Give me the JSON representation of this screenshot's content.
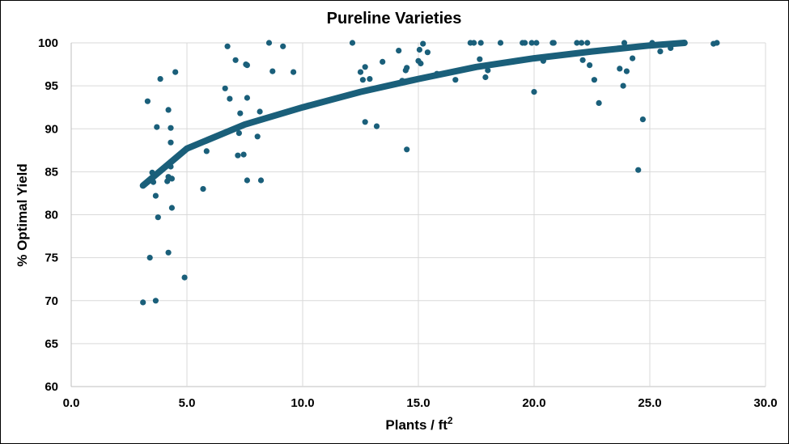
{
  "colors": {
    "marker": "#1a5f7a",
    "trendline": "#1a5f7a",
    "grid": "#d9d9d9",
    "text": "#000000"
  },
  "chart_data": {
    "type": "scatter",
    "title": "Pureline Varieties",
    "xlabel_main": "Plants / ft",
    "xlabel_sup": "2",
    "ylabel": "% Optimal Yield",
    "xlim": [
      0,
      30
    ],
    "ylim": [
      60,
      100
    ],
    "x_ticks": [
      "0.0",
      "5.0",
      "10.0",
      "15.0",
      "20.0",
      "25.0",
      "30.0"
    ],
    "y_ticks": [
      "60",
      "65",
      "70",
      "75",
      "80",
      "85",
      "90",
      "95",
      "100"
    ],
    "grid": "horizontal and vertical",
    "legend": "none",
    "trendline": {
      "type": "logarithmic",
      "x_range": [
        3.1,
        26.5
      ],
      "points": [
        [
          3.1,
          83.4
        ],
        [
          5,
          87.7
        ],
        [
          7.5,
          90.5
        ],
        [
          10,
          92.5
        ],
        [
          12.5,
          94.3
        ],
        [
          15,
          95.8
        ],
        [
          17.5,
          97.2
        ],
        [
          20,
          98.2
        ],
        [
          22.5,
          99.0
        ],
        [
          25,
          99.7
        ],
        [
          26.5,
          100.0
        ]
      ]
    },
    "points": [
      [
        3.1,
        69.8
      ],
      [
        3.2,
        83.6
      ],
      [
        3.3,
        93.2
      ],
      [
        3.4,
        75.0
      ],
      [
        3.5,
        84.9
      ],
      [
        3.55,
        83.8
      ],
      [
        3.65,
        70.0
      ],
      [
        3.65,
        82.2
      ],
      [
        3.7,
        90.2
      ],
      [
        3.75,
        79.7
      ],
      [
        3.85,
        95.8
      ],
      [
        4.15,
        83.9
      ],
      [
        4.2,
        84.4
      ],
      [
        4.2,
        75.6
      ],
      [
        4.2,
        92.2
      ],
      [
        4.3,
        90.1
      ],
      [
        4.3,
        88.4
      ],
      [
        4.3,
        85.6
      ],
      [
        4.35,
        84.2
      ],
      [
        4.35,
        80.8
      ],
      [
        4.5,
        96.6
      ],
      [
        4.9,
        72.7
      ],
      [
        5.7,
        83.0
      ],
      [
        5.85,
        87.4
      ],
      [
        6.65,
        94.7
      ],
      [
        6.75,
        99.6
      ],
      [
        6.85,
        93.5
      ],
      [
        7.1,
        98.0
      ],
      [
        7.2,
        86.9
      ],
      [
        7.25,
        89.5
      ],
      [
        7.3,
        91.8
      ],
      [
        7.45,
        87.0
      ],
      [
        7.55,
        97.5
      ],
      [
        7.6,
        97.4
      ],
      [
        7.6,
        93.6
      ],
      [
        7.6,
        84.0
      ],
      [
        7.9,
        90.8
      ],
      [
        8.05,
        89.1
      ],
      [
        8.15,
        92.0
      ],
      [
        8.2,
        84.0
      ],
      [
        8.55,
        100.0
      ],
      [
        8.7,
        96.7
      ],
      [
        9.15,
        99.6
      ],
      [
        9.6,
        96.6
      ],
      [
        12.15,
        100.0
      ],
      [
        12.5,
        96.6
      ],
      [
        12.6,
        95.7
      ],
      [
        12.7,
        97.2
      ],
      [
        12.7,
        90.8
      ],
      [
        12.9,
        95.8
      ],
      [
        13.2,
        90.3
      ],
      [
        13.45,
        97.8
      ],
      [
        14.15,
        99.1
      ],
      [
        14.3,
        95.6
      ],
      [
        14.45,
        96.8
      ],
      [
        14.5,
        97.1
      ],
      [
        14.5,
        87.6
      ],
      [
        15.0,
        97.9
      ],
      [
        15.05,
        99.2
      ],
      [
        15.1,
        97.6
      ],
      [
        15.2,
        99.9
      ],
      [
        15.4,
        98.9
      ],
      [
        15.8,
        96.4
      ],
      [
        16.6,
        95.7
      ],
      [
        17.25,
        100.0
      ],
      [
        17.4,
        100.0
      ],
      [
        17.65,
        98.1
      ],
      [
        17.7,
        100.0
      ],
      [
        17.9,
        96.0
      ],
      [
        18.0,
        96.8
      ],
      [
        18.55,
        100.0
      ],
      [
        19.5,
        100.0
      ],
      [
        19.6,
        100.0
      ],
      [
        19.9,
        100.0
      ],
      [
        20.0,
        94.3
      ],
      [
        20.1,
        100.0
      ],
      [
        20.4,
        97.9
      ],
      [
        20.8,
        100.0
      ],
      [
        20.85,
        100.0
      ],
      [
        21.85,
        100.0
      ],
      [
        22.05,
        100.0
      ],
      [
        22.1,
        98.0
      ],
      [
        22.3,
        100.0
      ],
      [
        22.4,
        97.4
      ],
      [
        22.6,
        95.7
      ],
      [
        22.8,
        93.0
      ],
      [
        23.7,
        97.0
      ],
      [
        23.85,
        95.0
      ],
      [
        23.9,
        100.0
      ],
      [
        24.0,
        96.7
      ],
      [
        24.25,
        98.2
      ],
      [
        24.5,
        85.2
      ],
      [
        24.7,
        91.1
      ],
      [
        25.1,
        100.0
      ],
      [
        25.45,
        99.0
      ],
      [
        25.85,
        99.9
      ],
      [
        25.9,
        99.4
      ],
      [
        27.75,
        99.9
      ],
      [
        27.9,
        100.0
      ]
    ]
  }
}
